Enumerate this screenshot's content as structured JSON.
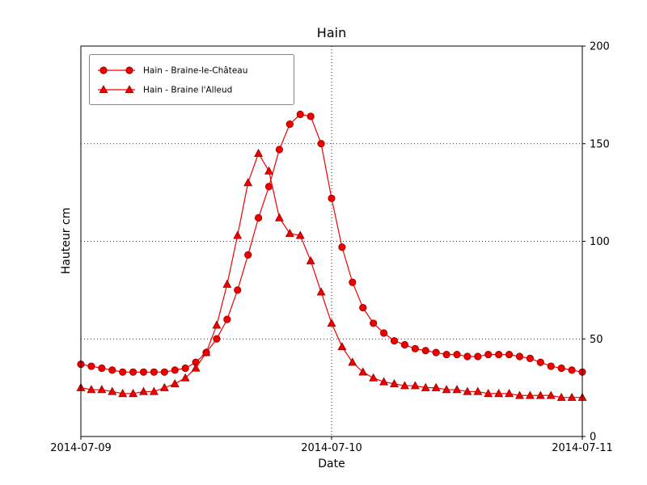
{
  "chart_data": {
    "type": "line",
    "title": "Hain",
    "xlabel": "Date",
    "ylabel": "Hauteur cm",
    "ylim": [
      0,
      200
    ],
    "yticks": [
      0,
      50,
      100,
      150,
      200
    ],
    "xticks": [
      {
        "label": "2014-07-09",
        "hour": 0
      },
      {
        "label": "2014-07-10",
        "hour": 24
      },
      {
        "label": "2014-07-11",
        "hour": 48
      }
    ],
    "x_range_hours": [
      0,
      48
    ],
    "grid": "dotted",
    "legend_position": "upper-left",
    "line_color": "#ee0000",
    "marker_edge_color": "#990000",
    "series": [
      {
        "name": "Hain - Braine-le-Château",
        "marker": "circle",
        "x_hours": [
          0,
          1,
          2,
          3,
          4,
          5,
          6,
          7,
          8,
          9,
          10,
          11,
          12,
          13,
          14,
          15,
          16,
          17,
          18,
          19,
          20,
          21,
          22,
          23,
          24,
          25,
          26,
          27,
          28,
          29,
          30,
          31,
          32,
          33,
          34,
          35,
          36,
          37,
          38,
          39,
          40,
          41,
          42,
          43,
          44,
          45,
          46,
          47,
          48
        ],
        "values": [
          37,
          36,
          35,
          34,
          33,
          33,
          33,
          33,
          33,
          34,
          35,
          38,
          43,
          50,
          60,
          75,
          93,
          112,
          128,
          147,
          160,
          165,
          164,
          150,
          122,
          97,
          79,
          66,
          58,
          53,
          49,
          47,
          45,
          44,
          43,
          42,
          42,
          41,
          41,
          42,
          42,
          42,
          41,
          40,
          38,
          36,
          35,
          34,
          33
        ]
      },
      {
        "name": "Hain - Braine l'Alleud",
        "marker": "triangle",
        "x_hours": [
          0,
          1,
          2,
          3,
          4,
          5,
          6,
          7,
          8,
          9,
          10,
          11,
          12,
          13,
          14,
          15,
          16,
          17,
          18,
          19,
          20,
          21,
          22,
          23,
          24,
          25,
          26,
          27,
          28,
          29,
          30,
          31,
          32,
          33,
          34,
          35,
          36,
          37,
          38,
          39,
          40,
          41,
          42,
          43,
          44,
          45,
          46,
          47,
          48
        ],
        "values": [
          25,
          24,
          24,
          23,
          22,
          22,
          23,
          23,
          25,
          27,
          30,
          35,
          43,
          57,
          78,
          103,
          130,
          145,
          136,
          112,
          104,
          103,
          90,
          74,
          58,
          46,
          38,
          33,
          30,
          28,
          27,
          26,
          26,
          25,
          25,
          24,
          24,
          23,
          23,
          22,
          22,
          22,
          21,
          21,
          21,
          21,
          20,
          20,
          20
        ]
      }
    ]
  }
}
